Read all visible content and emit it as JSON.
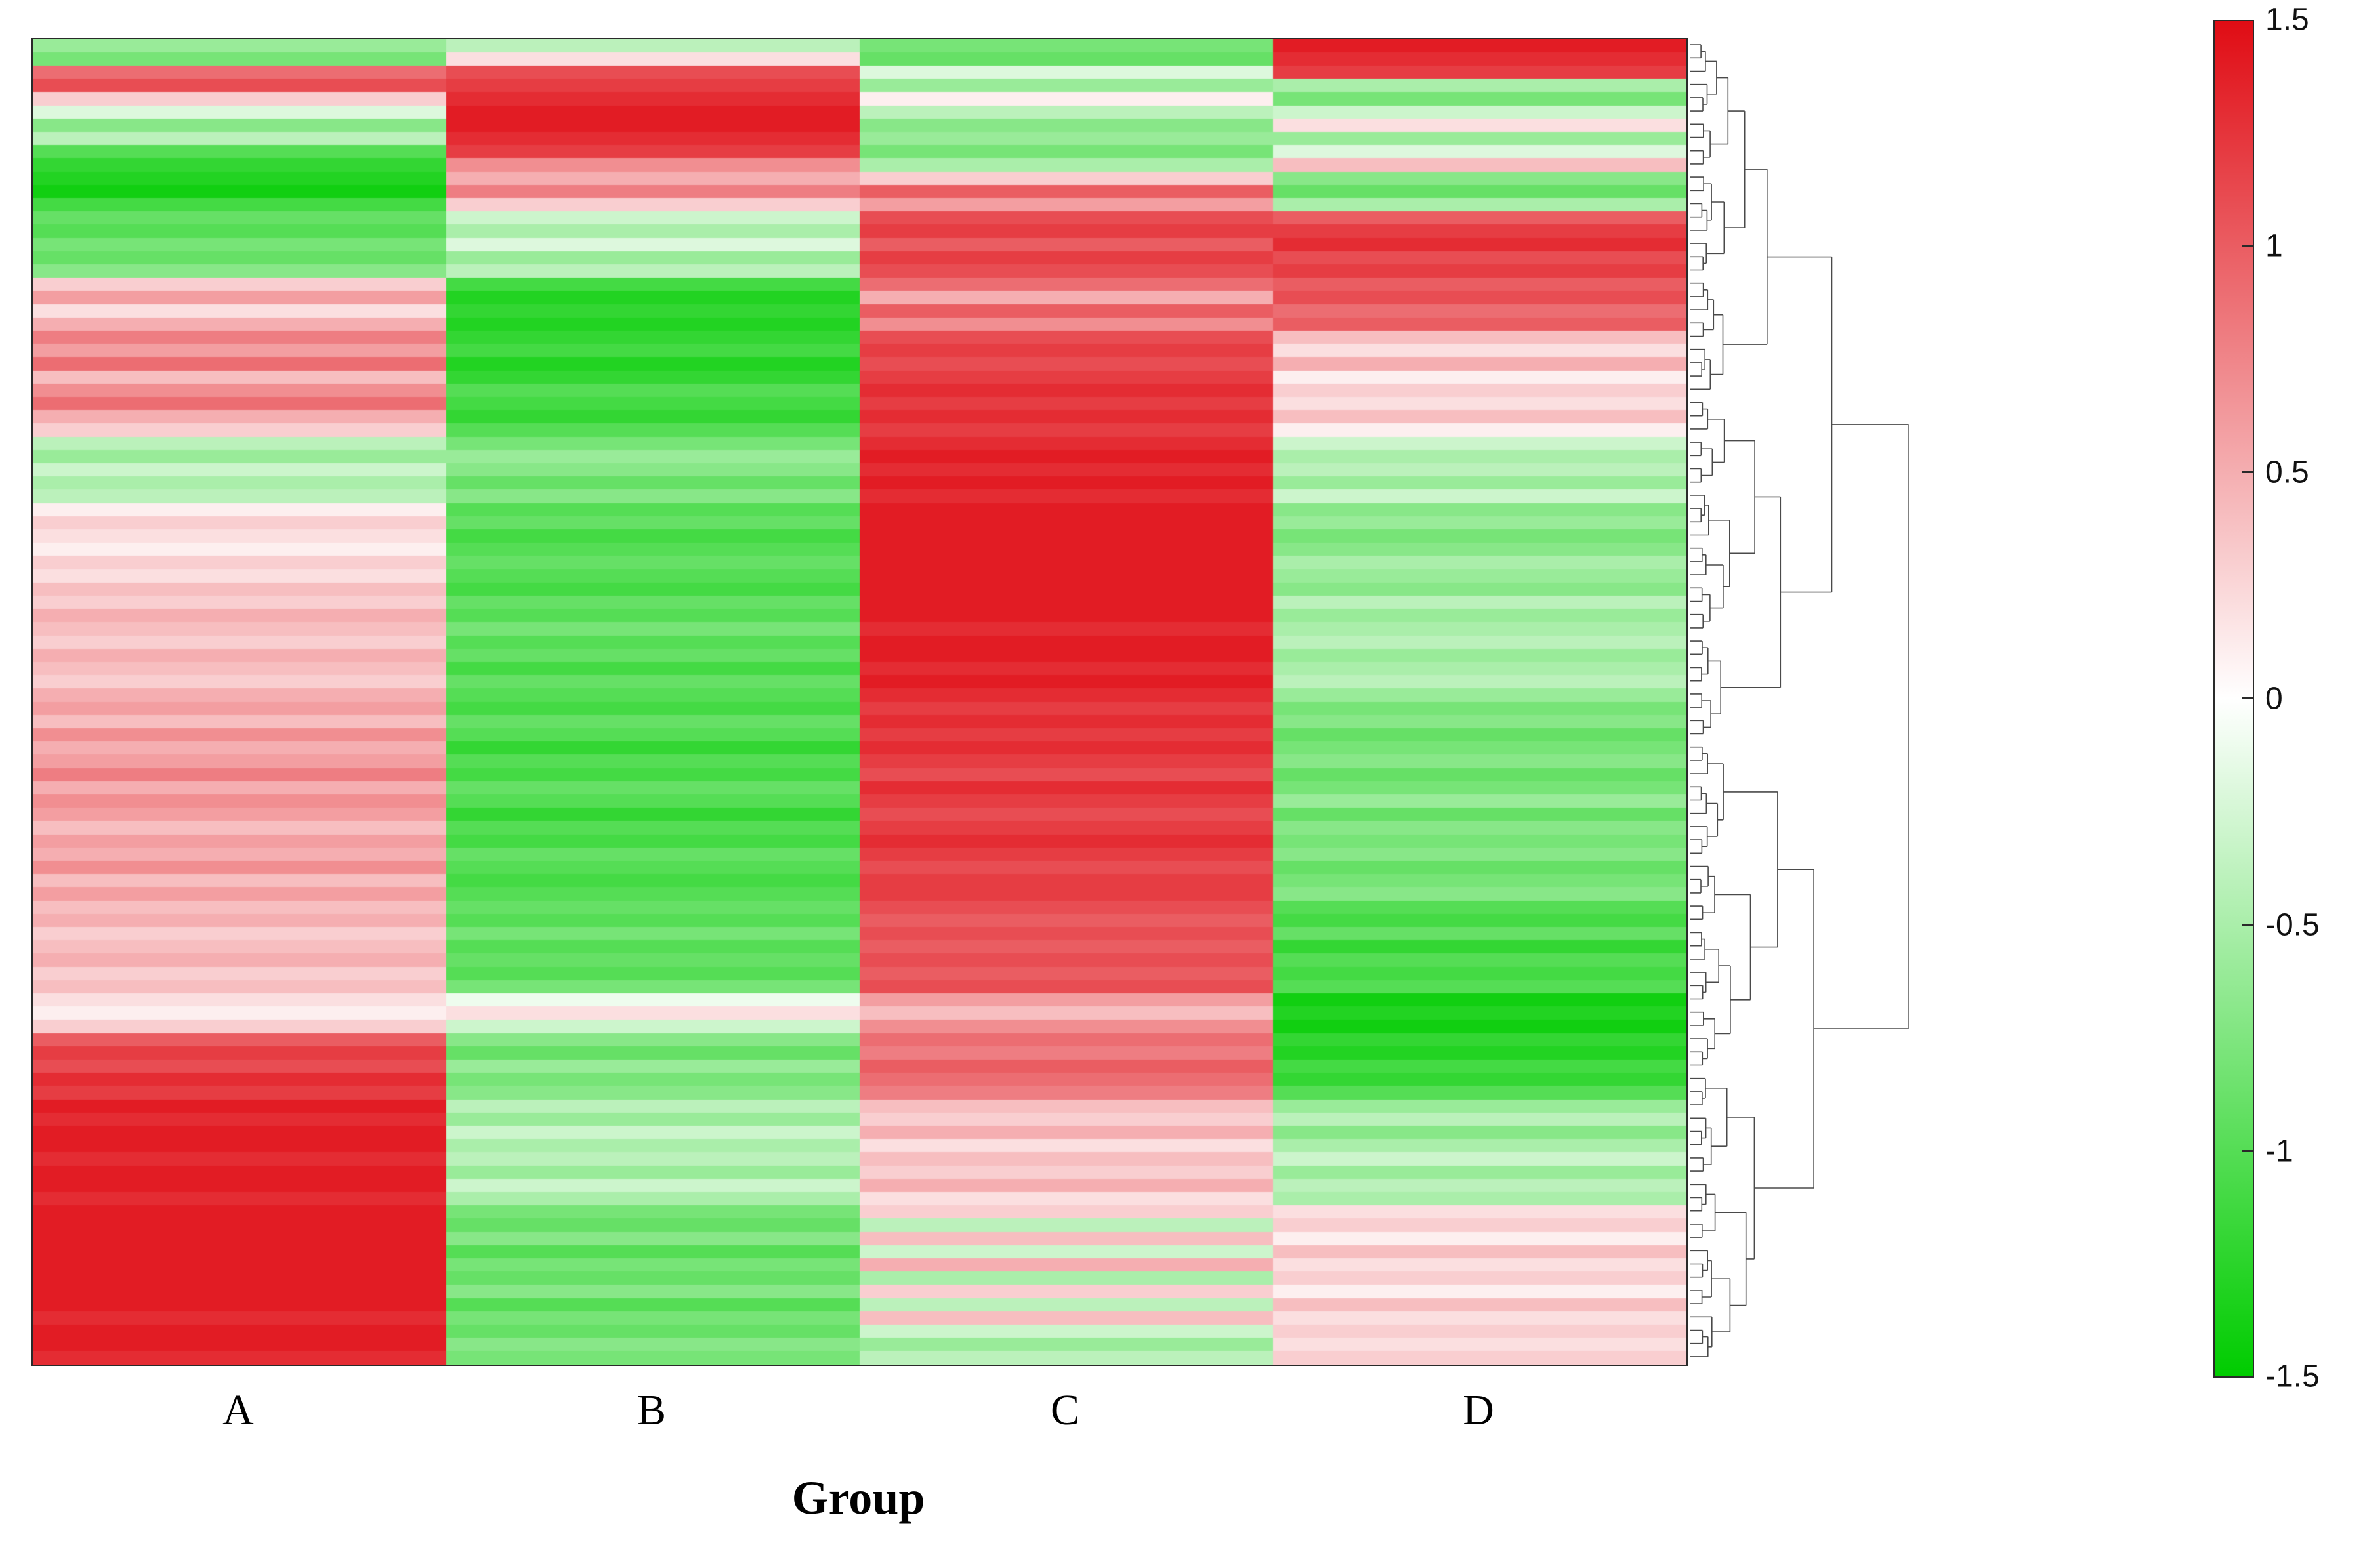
{
  "figure": {
    "background": "#ffffff"
  },
  "chart_data": {
    "type": "heatmap",
    "title": "",
    "xlabel": "Group",
    "categories": [
      "A",
      "B",
      "C",
      "D"
    ],
    "value_range": [
      -1.5,
      1.5
    ],
    "grid": false,
    "colormap": {
      "low": "#00cc00",
      "mid": "#ffffff",
      "high": "#e00c14",
      "low_value": -1.5,
      "mid_value": 0,
      "high_value": 1.5
    },
    "colorbar": {
      "position": "right",
      "ticks": [
        "1.5",
        "1",
        "0.5",
        "0",
        "-0.5",
        "-1",
        "-1.5"
      ],
      "tick_values": [
        1.5,
        1,
        0.5,
        0,
        -0.5,
        -1,
        -1.5
      ]
    },
    "dendrogram": {
      "position": "right",
      "leaves": 100
    },
    "rows": [
      [
        -0.6,
        -0.4,
        -0.8,
        1.4
      ],
      [
        -0.8,
        0.2,
        -0.9,
        1.3
      ],
      [
        0.9,
        1.1,
        -0.2,
        1.2
      ],
      [
        1.1,
        1.2,
        -0.6,
        -0.5
      ],
      [
        0.3,
        1.3,
        0.1,
        -0.8
      ],
      [
        -0.2,
        1.4,
        -0.4,
        -0.3
      ],
      [
        -0.7,
        1.4,
        -0.7,
        0.2
      ],
      [
        -0.4,
        1.3,
        -0.6,
        -0.6
      ],
      [
        -1.0,
        1.2,
        -0.8,
        -0.2
      ],
      [
        -1.2,
        0.7,
        -0.5,
        0.4
      ],
      [
        -1.3,
        0.5,
        0.3,
        -0.7
      ],
      [
        -1.4,
        0.8,
        1.0,
        -0.9
      ],
      [
        -1.1,
        0.3,
        0.6,
        -0.5
      ],
      [
        -0.9,
        -0.3,
        1.1,
        1.0
      ],
      [
        -1.0,
        -0.5,
        1.2,
        1.2
      ],
      [
        -0.8,
        -0.2,
        1.0,
        1.3
      ],
      [
        -0.9,
        -0.6,
        1.2,
        1.1
      ],
      [
        -0.7,
        -0.4,
        1.1,
        1.2
      ],
      [
        0.3,
        -1.1,
        0.9,
        1.0
      ],
      [
        0.6,
        -1.3,
        0.5,
        1.1
      ],
      [
        0.2,
        -1.2,
        1.0,
        0.9
      ],
      [
        0.5,
        -1.3,
        0.7,
        1.0
      ],
      [
        0.8,
        -1.2,
        1.1,
        0.4
      ],
      [
        0.6,
        -1.1,
        1.2,
        0.2
      ],
      [
        0.9,
        -1.3,
        1.1,
        0.5
      ],
      [
        0.4,
        -1.2,
        1.2,
        0.1
      ],
      [
        0.7,
        -1.0,
        1.3,
        0.3
      ],
      [
        0.9,
        -1.1,
        1.2,
        0.2
      ],
      [
        0.5,
        -1.2,
        1.3,
        0.4
      ],
      [
        0.3,
        -1.0,
        1.2,
        0.1
      ],
      [
        -0.4,
        -0.8,
        1.3,
        -0.3
      ],
      [
        -0.6,
        -0.6,
        1.4,
        -0.5
      ],
      [
        -0.3,
        -0.7,
        1.3,
        -0.4
      ],
      [
        -0.5,
        -0.9,
        1.4,
        -0.6
      ],
      [
        -0.4,
        -0.7,
        1.3,
        -0.3
      ],
      [
        0.1,
        -1.0,
        1.4,
        -0.7
      ],
      [
        0.3,
        -0.9,
        1.4,
        -0.6
      ],
      [
        0.2,
        -1.1,
        1.4,
        -0.8
      ],
      [
        0.1,
        -1.0,
        1.4,
        -0.7
      ],
      [
        0.3,
        -0.9,
        1.4,
        -0.5
      ],
      [
        0.2,
        -1.0,
        1.4,
        -0.6
      ],
      [
        0.4,
        -1.1,
        1.4,
        -0.7
      ],
      [
        0.3,
        -0.9,
        1.4,
        -0.4
      ],
      [
        0.5,
        -1.0,
        1.4,
        -0.6
      ],
      [
        0.4,
        -0.8,
        1.3,
        -0.5
      ],
      [
        0.3,
        -1.0,
        1.4,
        -0.4
      ],
      [
        0.5,
        -0.9,
        1.4,
        -0.6
      ],
      [
        0.4,
        -1.1,
        1.3,
        -0.5
      ],
      [
        0.3,
        -0.9,
        1.4,
        -0.4
      ],
      [
        0.5,
        -1.0,
        1.3,
        -0.6
      ],
      [
        0.6,
        -1.1,
        1.2,
        -0.8
      ],
      [
        0.4,
        -0.9,
        1.3,
        -0.7
      ],
      [
        0.7,
        -1.0,
        1.2,
        -0.9
      ],
      [
        0.5,
        -1.2,
        1.3,
        -0.8
      ],
      [
        0.6,
        -1.0,
        1.2,
        -0.7
      ],
      [
        0.8,
        -1.1,
        1.1,
        -0.9
      ],
      [
        0.5,
        -0.9,
        1.3,
        -0.8
      ],
      [
        0.7,
        -1.0,
        1.2,
        -0.6
      ],
      [
        0.6,
        -1.2,
        1.1,
        -0.9
      ],
      [
        0.4,
        -1.0,
        1.2,
        -0.7
      ],
      [
        0.6,
        -1.1,
        1.3,
        -0.8
      ],
      [
        0.5,
        -0.9,
        1.2,
        -0.7
      ],
      [
        0.7,
        -1.0,
        1.1,
        -0.9
      ],
      [
        0.4,
        -1.1,
        1.2,
        -0.8
      ],
      [
        0.6,
        -1.0,
        1.2,
        -0.7
      ],
      [
        0.4,
        -0.9,
        1.1,
        -1.0
      ],
      [
        0.5,
        -1.0,
        1.0,
        -1.1
      ],
      [
        0.3,
        -0.8,
        1.1,
        -0.9
      ],
      [
        0.4,
        -1.0,
        1.0,
        -1.2
      ],
      [
        0.5,
        -0.9,
        1.1,
        -1.0
      ],
      [
        0.3,
        -1.0,
        1.0,
        -1.1
      ],
      [
        0.4,
        -0.8,
        1.1,
        -1.0
      ],
      [
        0.2,
        -0.1,
        0.6,
        -1.4
      ],
      [
        0.1,
        0.2,
        0.4,
        -1.3
      ],
      [
        0.3,
        -0.3,
        0.7,
        -1.4
      ],
      [
        1.0,
        -0.7,
        0.9,
        -1.2
      ],
      [
        1.2,
        -0.9,
        0.8,
        -1.3
      ],
      [
        1.1,
        -0.6,
        1.0,
        -1.1
      ],
      [
        1.3,
        -0.8,
        0.9,
        -1.2
      ],
      [
        1.2,
        -0.7,
        0.8,
        -1.0
      ],
      [
        1.4,
        -0.4,
        0.4,
        -0.6
      ],
      [
        1.3,
        -0.6,
        0.3,
        -0.4
      ],
      [
        1.4,
        -0.3,
        0.5,
        -0.7
      ],
      [
        1.4,
        -0.5,
        0.2,
        -0.5
      ],
      [
        1.3,
        -0.4,
        0.4,
        -0.3
      ],
      [
        1.4,
        -0.6,
        0.3,
        -0.6
      ],
      [
        1.4,
        -0.3,
        0.5,
        -0.4
      ],
      [
        1.3,
        -0.5,
        0.2,
        -0.5
      ],
      [
        1.4,
        -0.8,
        0.3,
        0.2
      ],
      [
        1.4,
        -0.9,
        -0.4,
        0.3
      ],
      [
        1.4,
        -0.7,
        0.4,
        0.1
      ],
      [
        1.4,
        -1.0,
        -0.3,
        0.4
      ],
      [
        1.4,
        -0.8,
        0.5,
        0.2
      ],
      [
        1.4,
        -0.9,
        -0.5,
        0.3
      ],
      [
        1.4,
        -0.7,
        0.3,
        0.1
      ],
      [
        1.4,
        -1.0,
        -0.4,
        0.4
      ],
      [
        1.3,
        -0.8,
        0.4,
        0.2
      ],
      [
        1.4,
        -0.9,
        -0.3,
        0.3
      ],
      [
        1.4,
        -0.7,
        -0.6,
        0.2
      ],
      [
        1.3,
        -0.8,
        -0.4,
        0.3
      ]
    ]
  }
}
